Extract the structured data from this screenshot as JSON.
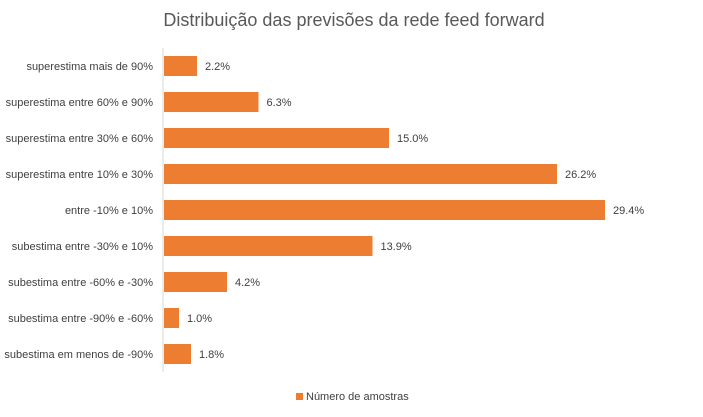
{
  "chart_data": {
    "type": "bar",
    "orientation": "horizontal",
    "title": "Distribuição das previsões da rede feed forward",
    "categories": [
      "superestima mais de 90%",
      "superestima entre 60% e 90%",
      "superestima entre 30% e 60%",
      "superestima entre 10% e 30%",
      "entre -10% e 10%",
      "subestima entre -30% e 10%",
      "subestima entre -60% e -30%",
      "subestima entre -90% e -60%",
      "subestima em menos de -90%"
    ],
    "series": [
      {
        "name": "Número de amostras",
        "values": [
          2.2,
          6.3,
          15.0,
          26.2,
          29.4,
          13.9,
          4.2,
          1.0,
          1.8
        ],
        "labels": [
          "2.2%",
          "6.3%",
          "15.0%",
          "26.2%",
          "29.4%",
          "13.9%",
          "4.2%",
          "1.0%",
          "1.8%"
        ],
        "color": "#ED7D31"
      }
    ],
    "xlim": [
      0,
      30
    ],
    "grid": false,
    "legend_position": "bottom"
  }
}
